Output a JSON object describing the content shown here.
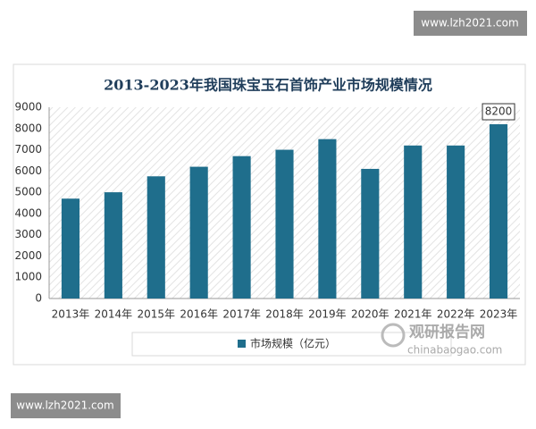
{
  "chart_data": {
    "type": "bar",
    "title": "2013-2023年我国珠宝玉石首饰产业市场规模情况",
    "categories": [
      "2013年",
      "2014年",
      "2015年",
      "2016年",
      "2017年",
      "2018年",
      "2019年",
      "2020年",
      "2021年",
      "2022年",
      "2023年"
    ],
    "series": [
      {
        "name": "市场规模（亿元）",
        "color": "#1f6e8c",
        "values": [
          4700,
          5000,
          5750,
          6200,
          6700,
          7000,
          7500,
          6100,
          7200,
          7200,
          8200
        ]
      }
    ],
    "ylim": [
      0,
      9000
    ],
    "yticks": [
      0,
      1000,
      2000,
      3000,
      4000,
      5000,
      6000,
      7000,
      8000,
      9000
    ],
    "grid": false,
    "legend": "bottom",
    "labeled_point": 10
  },
  "watermark": "www.lzh2021.com",
  "logo": {
    "name": "观研报告网",
    "site": "chinabaogao.com"
  }
}
